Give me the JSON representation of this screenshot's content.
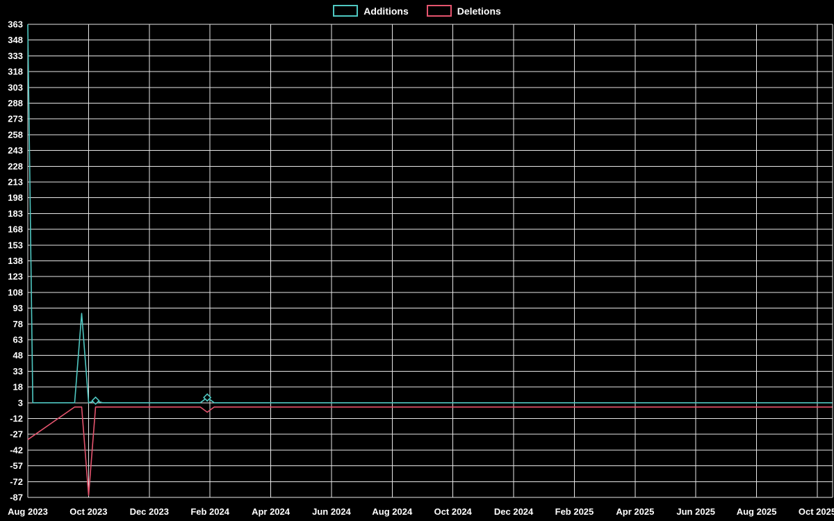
{
  "page": {
    "background": "#000000"
  },
  "chart_data": {
    "type": "line",
    "title": "",
    "legend": {
      "position": "top-center",
      "entries": [
        "Additions",
        "Deletions"
      ]
    },
    "grid": true,
    "colors": {
      "background": "#000000",
      "grid": "#e8e8e8",
      "text": "#ffffff"
    },
    "x_range": [
      "2023-08-01",
      "2025-10-01"
    ],
    "x_tick_labels": [
      "Aug 2023",
      "Oct 2023",
      "Dec 2023",
      "Feb 2024",
      "Apr 2024",
      "Jun 2024",
      "Aug 2024",
      "Oct 2024",
      "Dec 2024",
      "Feb 2025",
      "Apr 2025",
      "Jun 2025",
      "Aug 2025",
      "Oct 2025"
    ],
    "y_axis": {
      "min": -87,
      "max": 363,
      "step": 15
    },
    "y_ticks": [
      363,
      348,
      333,
      318,
      303,
      288,
      273,
      258,
      243,
      228,
      213,
      198,
      183,
      168,
      153,
      138,
      123,
      108,
      93,
      78,
      63,
      48,
      33,
      18,
      3,
      -12,
      -27,
      -42,
      -57,
      -72,
      -87
    ],
    "series": [
      {
        "name": "Additions",
        "color": "#4fc8c2",
        "points": [
          {
            "date": "2023-08-01",
            "value": 363
          },
          {
            "date": "2023-08-06",
            "value": 3
          },
          {
            "date": "2023-09-17",
            "value": 3
          },
          {
            "date": "2023-09-24",
            "value": 88
          },
          {
            "date": "2023-10-01",
            "value": 3
          },
          {
            "date": "2023-10-08",
            "value": 5,
            "marker": true
          },
          {
            "date": "2023-10-15",
            "value": 3
          },
          {
            "date": "2024-01-21",
            "value": 3
          },
          {
            "date": "2024-01-28",
            "value": 8,
            "marker": true
          },
          {
            "date": "2024-02-04",
            "value": 3
          },
          {
            "date": "2025-10-16",
            "value": 3
          }
        ]
      },
      {
        "name": "Deletions",
        "color": "#e5546e",
        "points": [
          {
            "date": "2023-08-01",
            "value": -32
          },
          {
            "date": "2023-09-17",
            "value": -1
          },
          {
            "date": "2023-09-24",
            "value": -1
          },
          {
            "date": "2023-10-01",
            "value": -85
          },
          {
            "date": "2023-10-08",
            "value": -1
          },
          {
            "date": "2024-01-21",
            "value": -1
          },
          {
            "date": "2024-01-28",
            "value": -6
          },
          {
            "date": "2024-02-04",
            "value": -1
          },
          {
            "date": "2025-10-16",
            "value": -1
          }
        ]
      }
    ]
  }
}
